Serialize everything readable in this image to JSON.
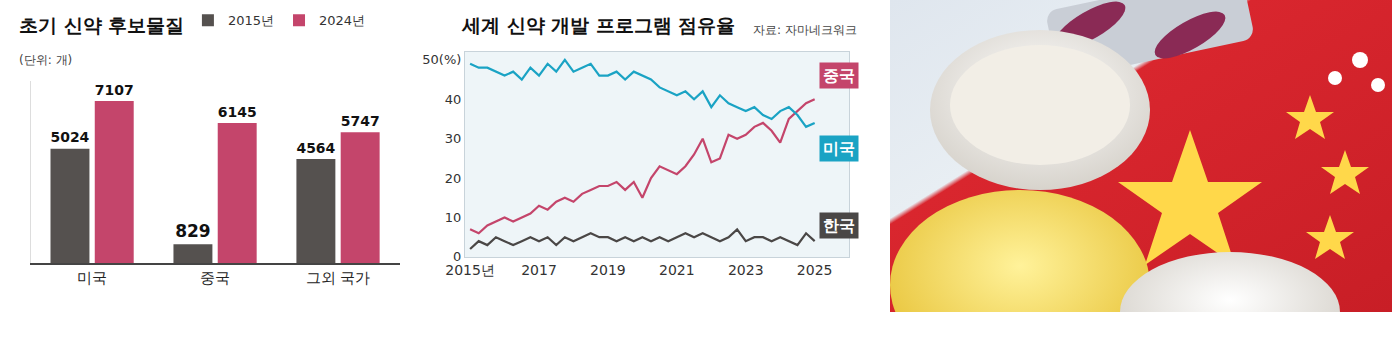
{
  "chart_data": [
    {
      "type": "bar",
      "title": "초기 신약 후보물질",
      "subtitle": "(단위: 개)",
      "categories": [
        "미국",
        "중국",
        "그외 국가"
      ],
      "series": [
        {
          "name": "2015년",
          "color": "#55514f",
          "values": [
            5024,
            829,
            4564
          ]
        },
        {
          "name": "2024년",
          "color": "#c4456b",
          "values": [
            7107,
            6145,
            5747
          ]
        }
      ],
      "ylim": [
        0,
        8000
      ],
      "data_labels": true,
      "tick_labels": "x",
      "legend": "top",
      "grid": false
    },
    {
      "type": "line",
      "title": "세계 신약 개발 프로그램 점유율",
      "annotations": [
        "자료: 자마네크워크"
      ],
      "x": [
        2015,
        2015.25,
        2015.5,
        2015.75,
        2016,
        2016.25,
        2016.5,
        2016.75,
        2017,
        2017.25,
        2017.5,
        2017.75,
        2018,
        2018.25,
        2018.5,
        2018.75,
        2019,
        2019.25,
        2019.5,
        2019.75,
        2020,
        2020.25,
        2020.5,
        2020.75,
        2021,
        2021.25,
        2021.5,
        2021.75,
        2022,
        2022.25,
        2022.5,
        2022.75,
        2023,
        2023.25,
        2023.5,
        2023.75,
        2024,
        2024.25,
        2024.5,
        2024.75,
        2025
      ],
      "xlim": [
        2014.85,
        2026
      ],
      "xticks": [
        {
          "value": 2015,
          "label": "2015년"
        },
        2017,
        2019,
        2021,
        2023,
        2025
      ],
      "ylim": [
        0,
        52
      ],
      "yticks": [
        0,
        10,
        20,
        30,
        40,
        {
          "value": 50,
          "label": "50(%)"
        }
      ],
      "grid": false,
      "series": [
        {
          "name": "중국",
          "color": "#c4456b",
          "values": [
            7,
            6,
            8,
            9,
            10,
            9,
            10,
            11,
            13,
            12,
            14,
            15,
            14,
            16,
            17,
            18,
            18,
            19,
            17,
            19,
            15,
            20,
            23,
            22,
            21,
            23,
            26,
            30,
            24,
            25,
            31,
            30,
            31,
            33,
            34,
            32,
            29,
            35,
            37,
            39,
            40
          ]
        },
        {
          "name": "미국",
          "color": "#1aa3c4",
          "values": [
            49,
            48,
            48,
            47,
            46,
            47,
            45,
            48,
            46,
            49,
            47,
            50,
            47,
            48,
            49,
            46,
            46,
            47,
            45,
            47,
            46,
            45,
            43,
            42,
            41,
            42,
            40,
            42,
            38,
            41,
            39,
            38,
            37,
            38,
            36,
            35,
            37,
            38,
            36,
            33,
            34
          ]
        },
        {
          "name": "한국",
          "color": "#4a4746",
          "values": [
            2,
            4,
            3,
            5,
            4,
            3,
            4,
            5,
            4,
            5,
            3,
            5,
            4,
            5,
            6,
            5,
            5,
            4,
            5,
            4,
            5,
            4,
            5,
            4,
            5,
            6,
            5,
            6,
            5,
            4,
            5,
            7,
            4,
            5,
            5,
            4,
            5,
            4,
            3,
            6,
            4
          ]
        }
      ]
    }
  ]
}
